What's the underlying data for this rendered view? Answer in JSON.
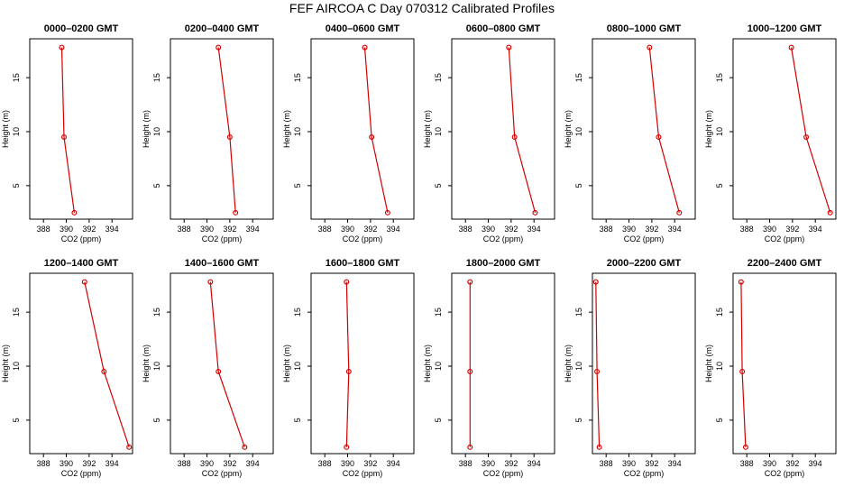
{
  "title": "FEF AIRCOA C  Day 070312  Calibrated Profiles",
  "colors": {
    "line": "#d40000",
    "axis": "#000000",
    "background": "#ffffff"
  },
  "chart_data": [
    {
      "type": "line",
      "title": "0000–0200 GMT",
      "xlabel": "CO2 (ppm)",
      "ylabel": "Height (m)",
      "xlim": [
        386.8,
        395.8
      ],
      "ylim": [
        1.9,
        18.6
      ],
      "xticks": [
        388,
        390,
        392,
        394
      ],
      "yticks": [
        5,
        10,
        15
      ],
      "x": [
        389.6,
        389.8,
        390.7
      ],
      "y": [
        17.8,
        9.5,
        2.5
      ]
    },
    {
      "type": "line",
      "title": "0200–0400 GMT",
      "xlabel": "CO2 (ppm)",
      "ylabel": "Height (m)",
      "xlim": [
        386.8,
        395.8
      ],
      "ylim": [
        1.9,
        18.6
      ],
      "xticks": [
        388,
        390,
        392,
        394
      ],
      "yticks": [
        5,
        10,
        15
      ],
      "x": [
        391.0,
        392.0,
        392.5
      ],
      "y": [
        17.8,
        9.5,
        2.5
      ]
    },
    {
      "type": "line",
      "title": "0400–0600 GMT",
      "xlabel": "CO2 (ppm)",
      "ylabel": "Height (m)",
      "xlim": [
        386.8,
        395.8
      ],
      "ylim": [
        1.9,
        18.6
      ],
      "xticks": [
        388,
        390,
        392,
        394
      ],
      "yticks": [
        5,
        10,
        15
      ],
      "x": [
        391.5,
        392.1,
        393.5
      ],
      "y": [
        17.8,
        9.5,
        2.5
      ]
    },
    {
      "type": "line",
      "title": "0600–0800 GMT",
      "xlabel": "CO2 (ppm)",
      "ylabel": "Height (m)",
      "xlim": [
        386.8,
        395.8
      ],
      "ylim": [
        1.9,
        18.6
      ],
      "xticks": [
        388,
        390,
        392,
        394
      ],
      "yticks": [
        5,
        10,
        15
      ],
      "x": [
        391.8,
        392.3,
        394.1
      ],
      "y": [
        17.8,
        9.5,
        2.5
      ]
    },
    {
      "type": "line",
      "title": "0800–1000 GMT",
      "xlabel": "CO2 (ppm)",
      "ylabel": "Height (m)",
      "xlim": [
        386.8,
        395.8
      ],
      "ylim": [
        1.9,
        18.6
      ],
      "xticks": [
        388,
        390,
        392,
        394
      ],
      "yticks": [
        5,
        10,
        15
      ],
      "x": [
        391.8,
        392.6,
        394.4
      ],
      "y": [
        17.8,
        9.5,
        2.5
      ]
    },
    {
      "type": "line",
      "title": "1000–1200 GMT",
      "xlabel": "CO2 (ppm)",
      "ylabel": "Height (m)",
      "xlim": [
        386.8,
        395.8
      ],
      "ylim": [
        1.9,
        18.6
      ],
      "xticks": [
        388,
        390,
        392,
        394
      ],
      "yticks": [
        5,
        10,
        15
      ],
      "x": [
        391.9,
        393.2,
        395.3
      ],
      "y": [
        17.8,
        9.5,
        2.5
      ]
    },
    {
      "type": "line",
      "title": "1200–1400 GMT",
      "xlabel": "CO2 (ppm)",
      "ylabel": "Height (m)",
      "xlim": [
        386.8,
        395.8
      ],
      "ylim": [
        1.9,
        18.6
      ],
      "xticks": [
        388,
        390,
        392,
        394
      ],
      "yticks": [
        5,
        10,
        15
      ],
      "x": [
        391.6,
        393.3,
        395.5
      ],
      "y": [
        17.8,
        9.5,
        2.5
      ]
    },
    {
      "type": "line",
      "title": "1400–1600 GMT",
      "xlabel": "CO2 (ppm)",
      "ylabel": "Height (m)",
      "xlim": [
        386.8,
        395.8
      ],
      "ylim": [
        1.9,
        18.6
      ],
      "xticks": [
        388,
        390,
        392,
        394
      ],
      "yticks": [
        5,
        10,
        15
      ],
      "x": [
        390.3,
        391.0,
        393.3
      ],
      "y": [
        17.8,
        9.5,
        2.5
      ]
    },
    {
      "type": "line",
      "title": "1600–1800 GMT",
      "xlabel": "CO2 (ppm)",
      "ylabel": "Height (m)",
      "xlim": [
        386.8,
        395.8
      ],
      "ylim": [
        1.9,
        18.6
      ],
      "xticks": [
        388,
        390,
        392,
        394
      ],
      "yticks": [
        5,
        10,
        15
      ],
      "x": [
        389.9,
        390.1,
        389.9
      ],
      "y": [
        17.8,
        9.5,
        2.5
      ]
    },
    {
      "type": "line",
      "title": "1800–2000 GMT",
      "xlabel": "CO2 (ppm)",
      "ylabel": "Height (m)",
      "xlim": [
        386.8,
        395.8
      ],
      "ylim": [
        1.9,
        18.6
      ],
      "xticks": [
        388,
        390,
        392,
        394
      ],
      "yticks": [
        5,
        10,
        15
      ],
      "x": [
        388.4,
        388.4,
        388.4
      ],
      "y": [
        17.8,
        9.5,
        2.5
      ]
    },
    {
      "type": "line",
      "title": "2000–2200 GMT",
      "xlabel": "CO2 (ppm)",
      "ylabel": "Height (m)",
      "xlim": [
        386.8,
        395.8
      ],
      "ylim": [
        1.9,
        18.6
      ],
      "xticks": [
        388,
        390,
        392,
        394
      ],
      "yticks": [
        5,
        10,
        15
      ],
      "x": [
        387.1,
        387.2,
        387.4
      ],
      "y": [
        17.8,
        9.5,
        2.5
      ]
    },
    {
      "type": "line",
      "title": "2200–2400 GMT",
      "xlabel": "CO2 (ppm)",
      "ylabel": "Height (m)",
      "xlim": [
        386.8,
        395.8
      ],
      "ylim": [
        1.9,
        18.6
      ],
      "xticks": [
        388,
        390,
        392,
        394
      ],
      "yticks": [
        5,
        10,
        15
      ],
      "x": [
        387.5,
        387.6,
        387.9
      ],
      "y": [
        17.8,
        9.5,
        2.5
      ]
    }
  ]
}
